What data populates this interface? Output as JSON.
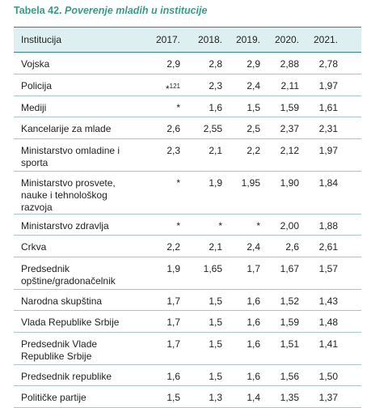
{
  "title": {
    "label": "Tabela 42.",
    "text": "Poverenje mladih u institucije"
  },
  "table": {
    "header": [
      "Institucija",
      "2017.",
      "2018.",
      "2019.",
      "2020.",
      "2021."
    ],
    "rows": [
      [
        "Vojska",
        "2,9",
        "2,8",
        "2,9",
        "2,88",
        "2,78"
      ],
      [
        "Policija",
        {
          "mark": "*",
          "sup": "121"
        },
        "2,3",
        "2,4",
        "2,11",
        "1,97"
      ],
      [
        "Mediji",
        "*",
        "1,6",
        "1,5",
        "1,59",
        "1,61"
      ],
      [
        "Kancelarije za mlade",
        "2,6",
        "2,55",
        "2,5",
        "2,37",
        "2,31"
      ],
      [
        "Ministarstvo omladine i sporta",
        "2,3",
        "2,1",
        "2,2",
        "2,12",
        "1,97"
      ],
      [
        "Ministarstvo prosvete, nauke i tehnološkog razvoja",
        "*",
        "1,9",
        "1,95",
        "1,90",
        "1,84"
      ],
      [
        "Ministarstvo zdravlja",
        "*",
        "*",
        "*",
        "2,00",
        "1,88"
      ],
      [
        "Crkva",
        "2,2",
        "2,1",
        "2,4",
        "2,6",
        "2,61"
      ],
      [
        "Predsednik opštine/gradonačelnik",
        "1,9",
        "1,65",
        "1,7",
        "1,67",
        "1,57"
      ],
      [
        "Narodna skupština",
        "1,7",
        "1,5",
        "1,6",
        "1,52",
        "1,43"
      ],
      [
        "Vlada Republike Srbije",
        "1,7",
        "1,5",
        "1,6",
        "1,59",
        "1,48"
      ],
      [
        "Predsednik Vlade Republike Srbije",
        "1,7",
        "1,5",
        "1,6",
        "1,51",
        "1,41"
      ],
      [
        "Predsednik republike",
        "1,6",
        "1,5",
        "1,6",
        "1,56",
        "1,50"
      ],
      [
        "Političke partije",
        "1,5",
        "1,3",
        "1,4",
        "1,35",
        "1,37"
      ]
    ]
  }
}
